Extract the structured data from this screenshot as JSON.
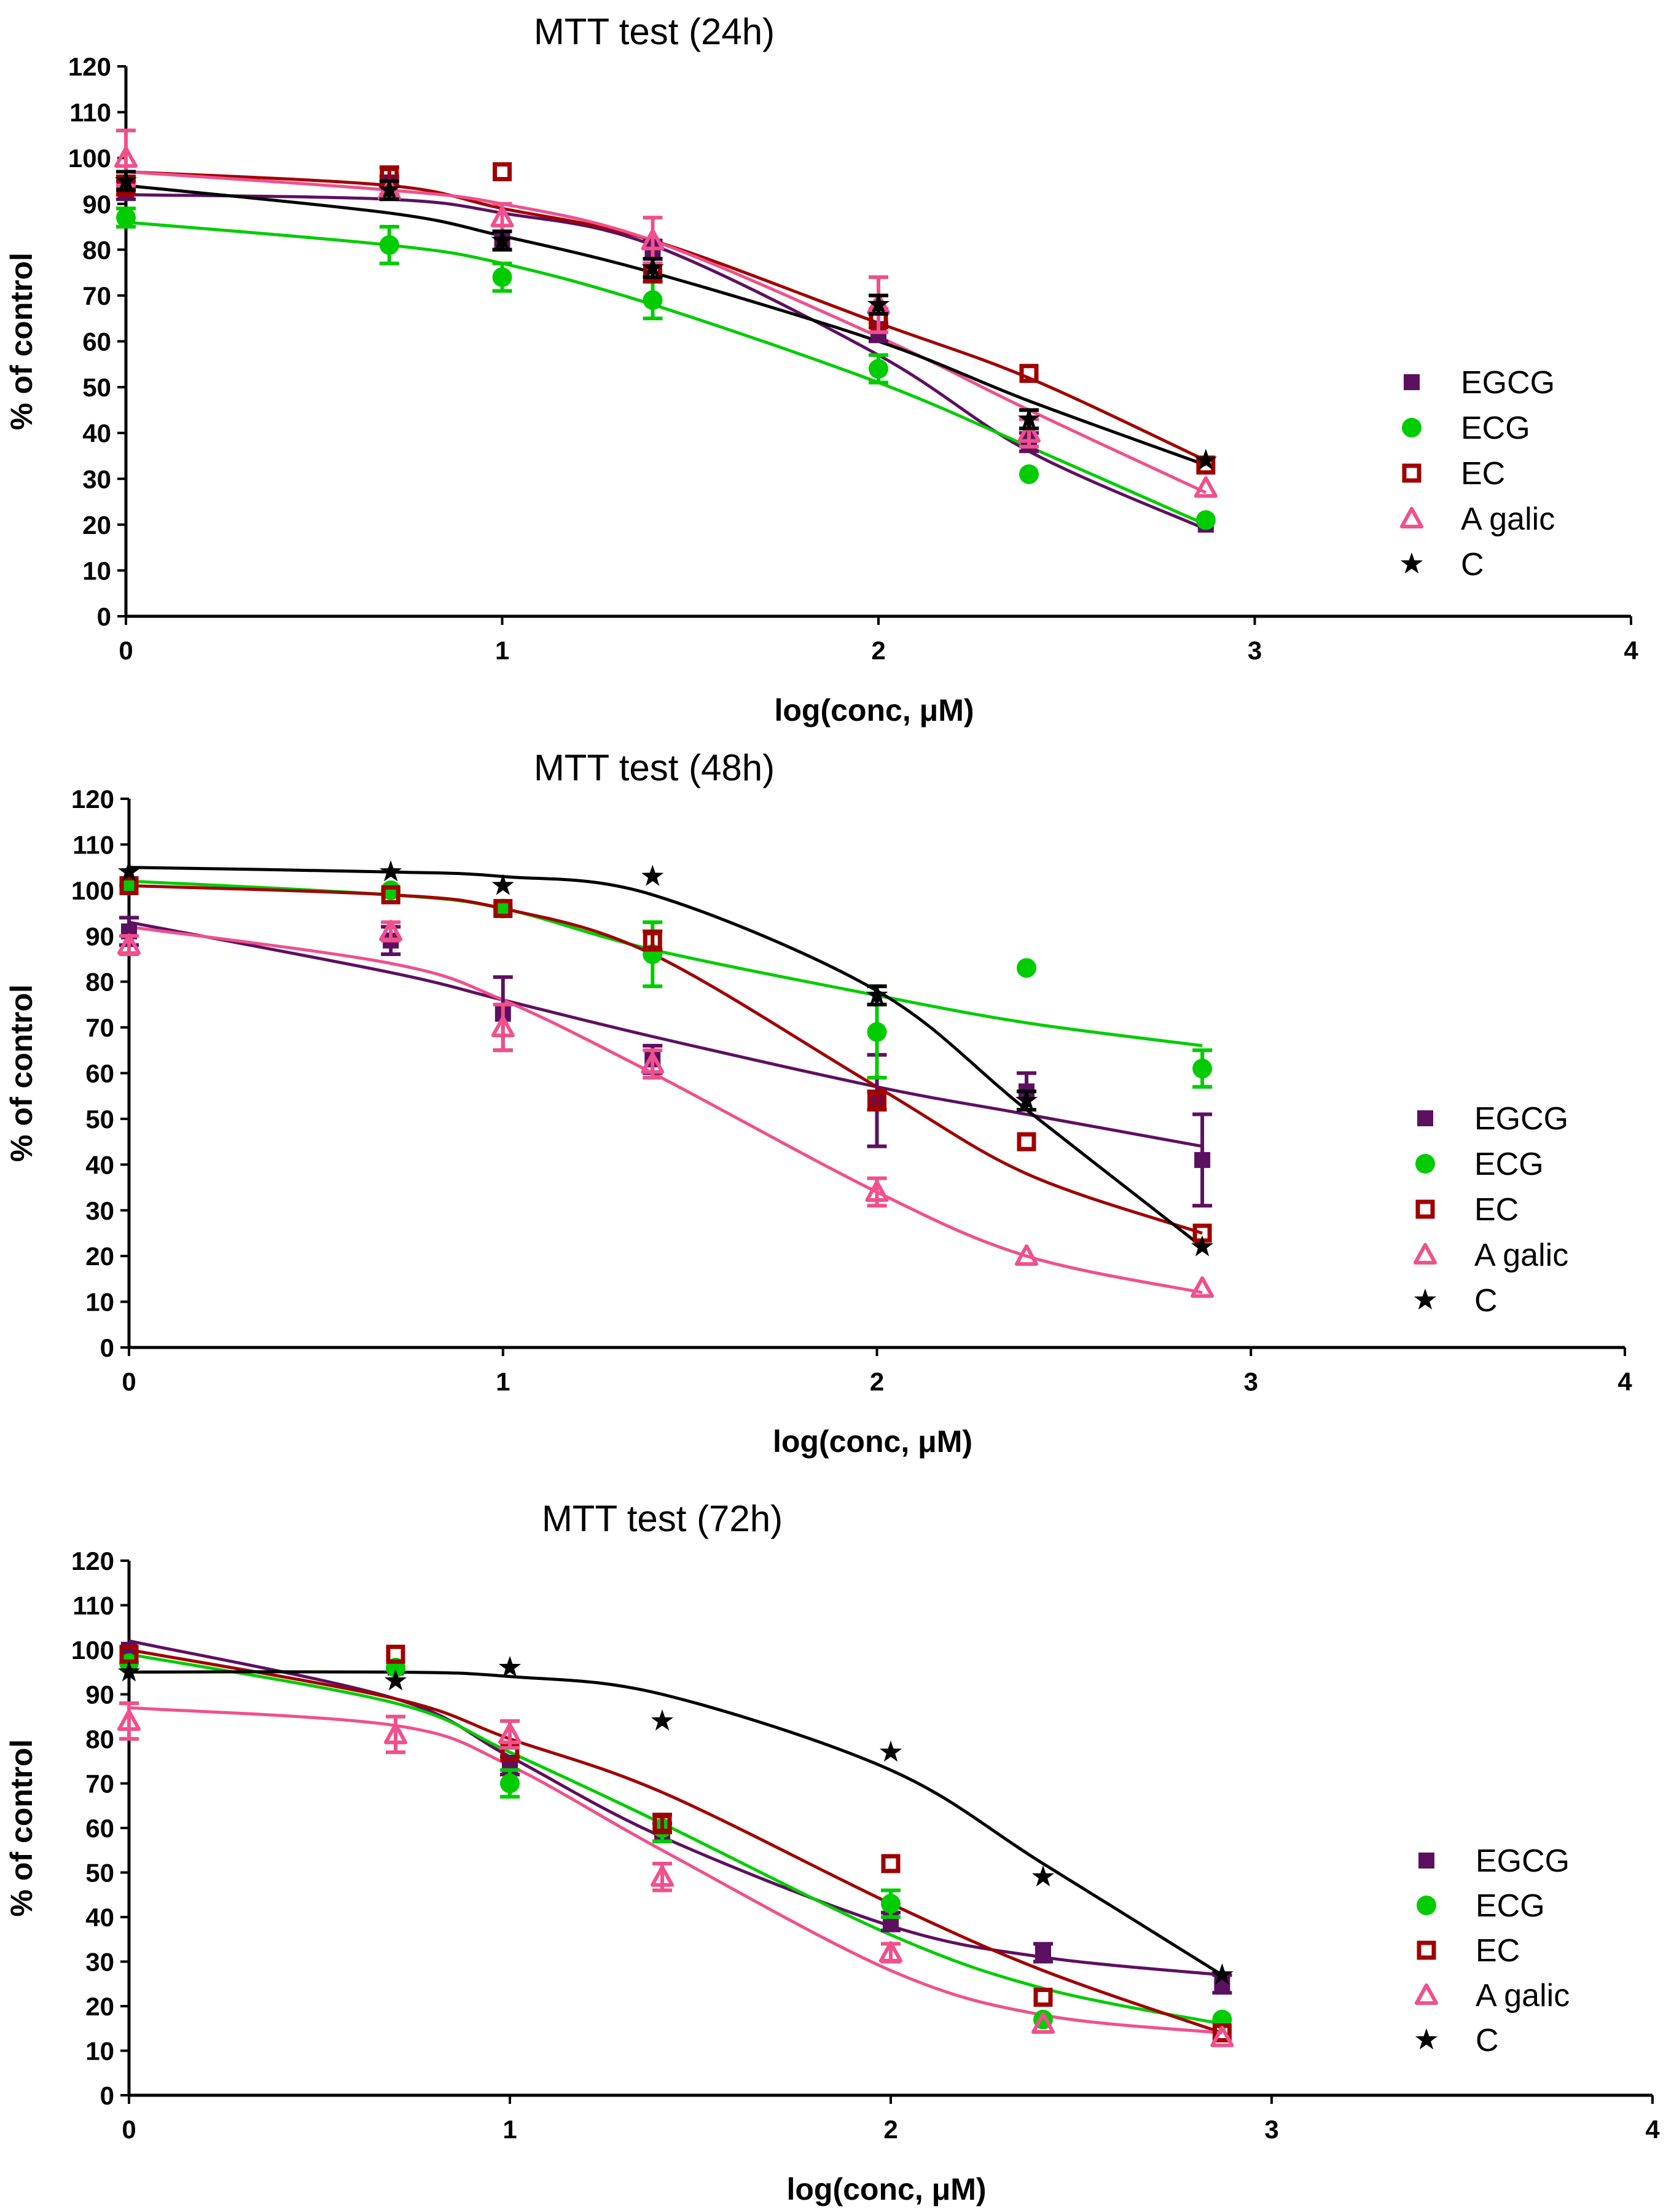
{
  "chart_data": [
    {
      "type": "scatter",
      "title": "MTT test (24h)",
      "xlabel": "log(conc, μM)",
      "ylabel": "% of control",
      "xlim": [
        0,
        4
      ],
      "ylim": [
        0,
        120
      ],
      "xticks": [
        "0",
        "1",
        "2",
        "3",
        "4"
      ],
      "yticks": [
        "0",
        "10",
        "20",
        "30",
        "40",
        "50",
        "60",
        "70",
        "80",
        "90",
        "100",
        "110",
        "120"
      ],
      "legend_position": "right",
      "x": [
        0,
        0.7,
        1,
        1.4,
        2,
        2.4,
        2.87
      ],
      "series": [
        {
          "name": "EGCG",
          "marker": "square",
          "color": "#5c1060",
          "values": [
            93,
            94,
            82,
            80,
            62,
            38,
            20
          ],
          "errors": [
            2,
            2,
            2,
            2,
            2,
            2,
            1
          ],
          "fit": [
            92,
            91,
            88,
            81,
            57,
            36,
            19
          ]
        },
        {
          "name": "ECG",
          "marker": "circle",
          "color": "#00cc00",
          "values": [
            87,
            81,
            74,
            69,
            54,
            31,
            21
          ],
          "errors": [
            2,
            4,
            3,
            4,
            3,
            1,
            1
          ],
          "fit": [
            86,
            81,
            77,
            68,
            51,
            37,
            20
          ]
        },
        {
          "name": "EC",
          "marker": "square-open",
          "color": "#a00000",
          "values": [
            94,
            96,
            97,
            75,
            65,
            53,
            33
          ],
          "errors": [
            2,
            2,
            1,
            2,
            2,
            1,
            1
          ],
          "fit": [
            97,
            94,
            89,
            82,
            64,
            52,
            34
          ]
        },
        {
          "name": "A galic",
          "marker": "triangle-open",
          "color": "#f0508c",
          "values": [
            100,
            93,
            87,
            82,
            68,
            40,
            28
          ],
          "errors": [
            6,
            2,
            3,
            5,
            6,
            3,
            1
          ],
          "fit": [
            97,
            93,
            90,
            82,
            61,
            45,
            27
          ]
        },
        {
          "name": "C",
          "marker": "star",
          "color": "#000000",
          "values": [
            95,
            93,
            82,
            76,
            68,
            43,
            34
          ],
          "errors": [
            2,
            2,
            2,
            2,
            2,
            2,
            1
          ],
          "fit": [
            94,
            88,
            83,
            75,
            60,
            47,
            33
          ]
        }
      ]
    },
    {
      "type": "scatter",
      "title": "MTT test (48h)",
      "xlabel": "log(conc, μM)",
      "ylabel": "% of control",
      "xlim": [
        0,
        4
      ],
      "ylim": [
        0,
        120
      ],
      "xticks": [
        "0",
        "1",
        "2",
        "3",
        "4"
      ],
      "yticks": [
        "0",
        "10",
        "20",
        "30",
        "40",
        "50",
        "60",
        "70",
        "80",
        "90",
        "100",
        "110",
        "120"
      ],
      "legend_position": "right",
      "x": [
        0,
        0.7,
        1,
        1.4,
        2,
        2.4,
        2.87
      ],
      "series": [
        {
          "name": "EGCG",
          "marker": "square",
          "color": "#5c1060",
          "values": [
            91,
            89,
            73,
            63,
            54,
            56,
            41
          ],
          "errors": [
            3,
            3,
            8,
            3,
            10,
            4,
            10
          ],
          "fit": [
            93,
            82,
            76,
            68,
            57,
            51,
            44
          ]
        },
        {
          "name": "ECG",
          "marker": "circle",
          "color": "#00cc00",
          "values": [
            101,
            100,
            96,
            86,
            69,
            83,
            61
          ],
          "errors": [
            1,
            1,
            1,
            7,
            10,
            1,
            4
          ],
          "fit": [
            102,
            99,
            96,
            87,
            77,
            71,
            66
          ]
        },
        {
          "name": "EC",
          "marker": "square-open",
          "color": "#a00000",
          "values": [
            101,
            99,
            96,
            89,
            54,
            45,
            25
          ],
          "errors": [
            1,
            1,
            1,
            2,
            2,
            1,
            1
          ],
          "fit": [
            101,
            99,
            96,
            86,
            57,
            38,
            25
          ]
        },
        {
          "name": "A galic",
          "marker": "triangle-open",
          "color": "#f0508c",
          "values": [
            88,
            91,
            70,
            62,
            34,
            20,
            13
          ],
          "errors": [
            2,
            2,
            5,
            3,
            3,
            1,
            1
          ],
          "fit": [
            92,
            84,
            76,
            60,
            34,
            20,
            12
          ]
        },
        {
          "name": "C",
          "marker": "star",
          "color": "#000000",
          "values": [
            104,
            104,
            101,
            103,
            77,
            54,
            22
          ],
          "errors": [
            1,
            1,
            1,
            1,
            2,
            2,
            1
          ],
          "fit": [
            105,
            104,
            103,
            99,
            78,
            52,
            22
          ]
        }
      ]
    },
    {
      "type": "scatter",
      "title": "MTT test (72h)",
      "xlabel": "log(conc, μM)",
      "ylabel": "% of control",
      "xlim": [
        0,
        4
      ],
      "ylim": [
        0,
        120
      ],
      "xticks": [
        "0",
        "1",
        "2",
        "3",
        "4"
      ],
      "yticks": [
        "0",
        "10",
        "20",
        "30",
        "40",
        "50",
        "60",
        "70",
        "80",
        "90",
        "100",
        "110",
        "120"
      ],
      "legend_position": "right",
      "x": [
        0,
        0.7,
        1,
        1.4,
        2,
        2.4,
        2.87
      ],
      "series": [
        {
          "name": "EGCG",
          "marker": "square",
          "color": "#5c1060",
          "values": [
            100,
            96,
            74,
            59,
            39,
            32,
            25
          ],
          "errors": [
            1,
            1,
            2,
            2,
            2,
            2,
            2
          ],
          "fit": [
            102,
            89,
            76,
            58,
            38,
            31,
            27
          ]
        },
        {
          "name": "ECG",
          "marker": "circle",
          "color": "#00cc00",
          "values": [
            97,
            96,
            70,
            60,
            43,
            17,
            17
          ],
          "errors": [
            1,
            1,
            3,
            3,
            3,
            1,
            1
          ],
          "fit": [
            99,
            88,
            77,
            61,
            36,
            24,
            16
          ]
        },
        {
          "name": "EC",
          "marker": "square-open",
          "color": "#a00000",
          "values": [
            99,
            99,
            77,
            61,
            52,
            22,
            14
          ],
          "errors": [
            1,
            1,
            1,
            2,
            1,
            1,
            1
          ],
          "fit": [
            100,
            89,
            80,
            68,
            43,
            28,
            14
          ]
        },
        {
          "name": "A galic",
          "marker": "triangle-open",
          "color": "#f0508c",
          "values": [
            84,
            81,
            81,
            49,
            32,
            16,
            13
          ],
          "errors": [
            4,
            4,
            3,
            3,
            2,
            1,
            1
          ],
          "fit": [
            87,
            83,
            74,
            55,
            28,
            18,
            14
          ]
        },
        {
          "name": "C",
          "marker": "star",
          "color": "#000000",
          "values": [
            95,
            93,
            96,
            84,
            77,
            49,
            27
          ],
          "errors": [
            1,
            1,
            1,
            1,
            1,
            1,
            1
          ],
          "fit": [
            95,
            95,
            94,
            90,
            73,
            52,
            27
          ]
        }
      ]
    }
  ]
}
